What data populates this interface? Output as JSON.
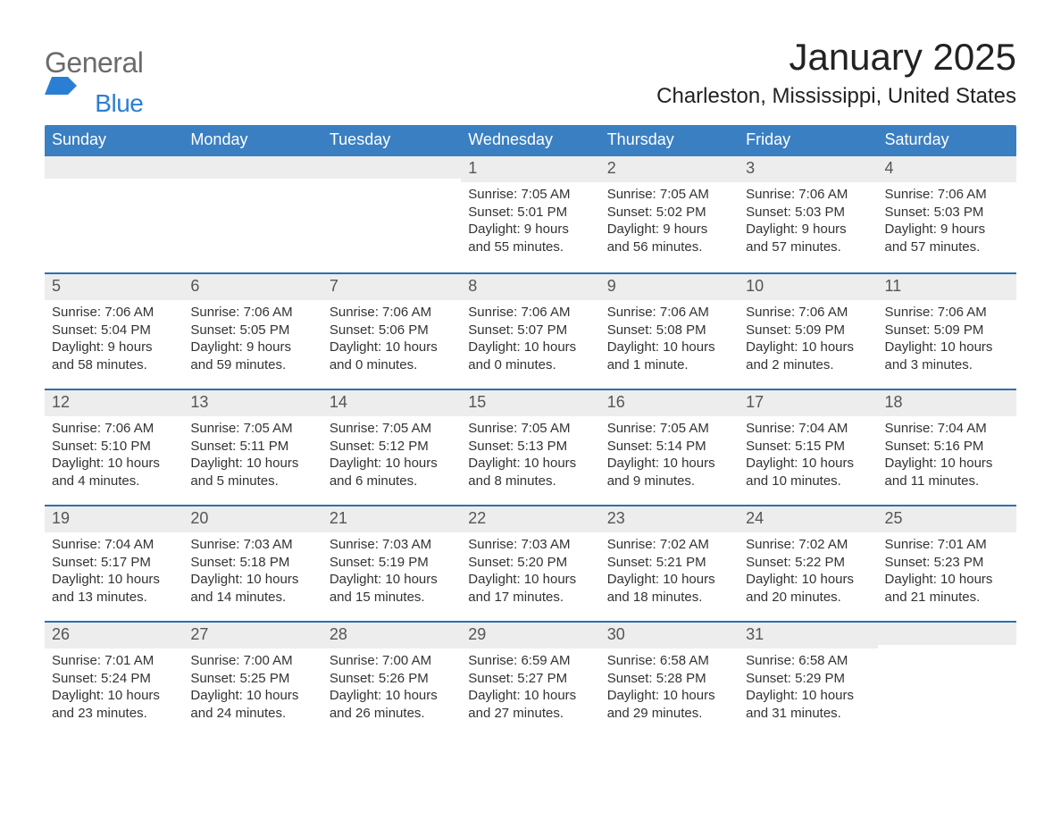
{
  "logo": {
    "word1": "General",
    "word2": "Blue"
  },
  "title": "January 2025",
  "location": "Charleston, Mississippi, United States",
  "colors": {
    "header_blue": "#3a7fc2",
    "line_blue": "#2f6fb0",
    "date_gray_bg": "#ededed",
    "logo_gray": "#6b6b6b",
    "logo_blue": "#2a7fd4",
    "text_dark": "#333333"
  },
  "weekdays": [
    "Sunday",
    "Monday",
    "Tuesday",
    "Wednesday",
    "Thursday",
    "Friday",
    "Saturday"
  ],
  "weeks": [
    [
      null,
      null,
      null,
      {
        "day": 1,
        "sunrise": "7:05 AM",
        "sunset": "5:01 PM",
        "daylight": "9 hours and 55 minutes."
      },
      {
        "day": 2,
        "sunrise": "7:05 AM",
        "sunset": "5:02 PM",
        "daylight": "9 hours and 56 minutes."
      },
      {
        "day": 3,
        "sunrise": "7:06 AM",
        "sunset": "5:03 PM",
        "daylight": "9 hours and 57 minutes."
      },
      {
        "day": 4,
        "sunrise": "7:06 AM",
        "sunset": "5:03 PM",
        "daylight": "9 hours and 57 minutes."
      }
    ],
    [
      {
        "day": 5,
        "sunrise": "7:06 AM",
        "sunset": "5:04 PM",
        "daylight": "9 hours and 58 minutes."
      },
      {
        "day": 6,
        "sunrise": "7:06 AM",
        "sunset": "5:05 PM",
        "daylight": "9 hours and 59 minutes."
      },
      {
        "day": 7,
        "sunrise": "7:06 AM",
        "sunset": "5:06 PM",
        "daylight": "10 hours and 0 minutes."
      },
      {
        "day": 8,
        "sunrise": "7:06 AM",
        "sunset": "5:07 PM",
        "daylight": "10 hours and 0 minutes."
      },
      {
        "day": 9,
        "sunrise": "7:06 AM",
        "sunset": "5:08 PM",
        "daylight": "10 hours and 1 minute."
      },
      {
        "day": 10,
        "sunrise": "7:06 AM",
        "sunset": "5:09 PM",
        "daylight": "10 hours and 2 minutes."
      },
      {
        "day": 11,
        "sunrise": "7:06 AM",
        "sunset": "5:09 PM",
        "daylight": "10 hours and 3 minutes."
      }
    ],
    [
      {
        "day": 12,
        "sunrise": "7:06 AM",
        "sunset": "5:10 PM",
        "daylight": "10 hours and 4 minutes."
      },
      {
        "day": 13,
        "sunrise": "7:05 AM",
        "sunset": "5:11 PM",
        "daylight": "10 hours and 5 minutes."
      },
      {
        "day": 14,
        "sunrise": "7:05 AM",
        "sunset": "5:12 PM",
        "daylight": "10 hours and 6 minutes."
      },
      {
        "day": 15,
        "sunrise": "7:05 AM",
        "sunset": "5:13 PM",
        "daylight": "10 hours and 8 minutes."
      },
      {
        "day": 16,
        "sunrise": "7:05 AM",
        "sunset": "5:14 PM",
        "daylight": "10 hours and 9 minutes."
      },
      {
        "day": 17,
        "sunrise": "7:04 AM",
        "sunset": "5:15 PM",
        "daylight": "10 hours and 10 minutes."
      },
      {
        "day": 18,
        "sunrise": "7:04 AM",
        "sunset": "5:16 PM",
        "daylight": "10 hours and 11 minutes."
      }
    ],
    [
      {
        "day": 19,
        "sunrise": "7:04 AM",
        "sunset": "5:17 PM",
        "daylight": "10 hours and 13 minutes."
      },
      {
        "day": 20,
        "sunrise": "7:03 AM",
        "sunset": "5:18 PM",
        "daylight": "10 hours and 14 minutes."
      },
      {
        "day": 21,
        "sunrise": "7:03 AM",
        "sunset": "5:19 PM",
        "daylight": "10 hours and 15 minutes."
      },
      {
        "day": 22,
        "sunrise": "7:03 AM",
        "sunset": "5:20 PM",
        "daylight": "10 hours and 17 minutes."
      },
      {
        "day": 23,
        "sunrise": "7:02 AM",
        "sunset": "5:21 PM",
        "daylight": "10 hours and 18 minutes."
      },
      {
        "day": 24,
        "sunrise": "7:02 AM",
        "sunset": "5:22 PM",
        "daylight": "10 hours and 20 minutes."
      },
      {
        "day": 25,
        "sunrise": "7:01 AM",
        "sunset": "5:23 PM",
        "daylight": "10 hours and 21 minutes."
      }
    ],
    [
      {
        "day": 26,
        "sunrise": "7:01 AM",
        "sunset": "5:24 PM",
        "daylight": "10 hours and 23 minutes."
      },
      {
        "day": 27,
        "sunrise": "7:00 AM",
        "sunset": "5:25 PM",
        "daylight": "10 hours and 24 minutes."
      },
      {
        "day": 28,
        "sunrise": "7:00 AM",
        "sunset": "5:26 PM",
        "daylight": "10 hours and 26 minutes."
      },
      {
        "day": 29,
        "sunrise": "6:59 AM",
        "sunset": "5:27 PM",
        "daylight": "10 hours and 27 minutes."
      },
      {
        "day": 30,
        "sunrise": "6:58 AM",
        "sunset": "5:28 PM",
        "daylight": "10 hours and 29 minutes."
      },
      {
        "day": 31,
        "sunrise": "6:58 AM",
        "sunset": "5:29 PM",
        "daylight": "10 hours and 31 minutes."
      },
      null
    ]
  ],
  "labels": {
    "sunrise": "Sunrise: ",
    "sunset": "Sunset: ",
    "daylight": "Daylight: "
  }
}
